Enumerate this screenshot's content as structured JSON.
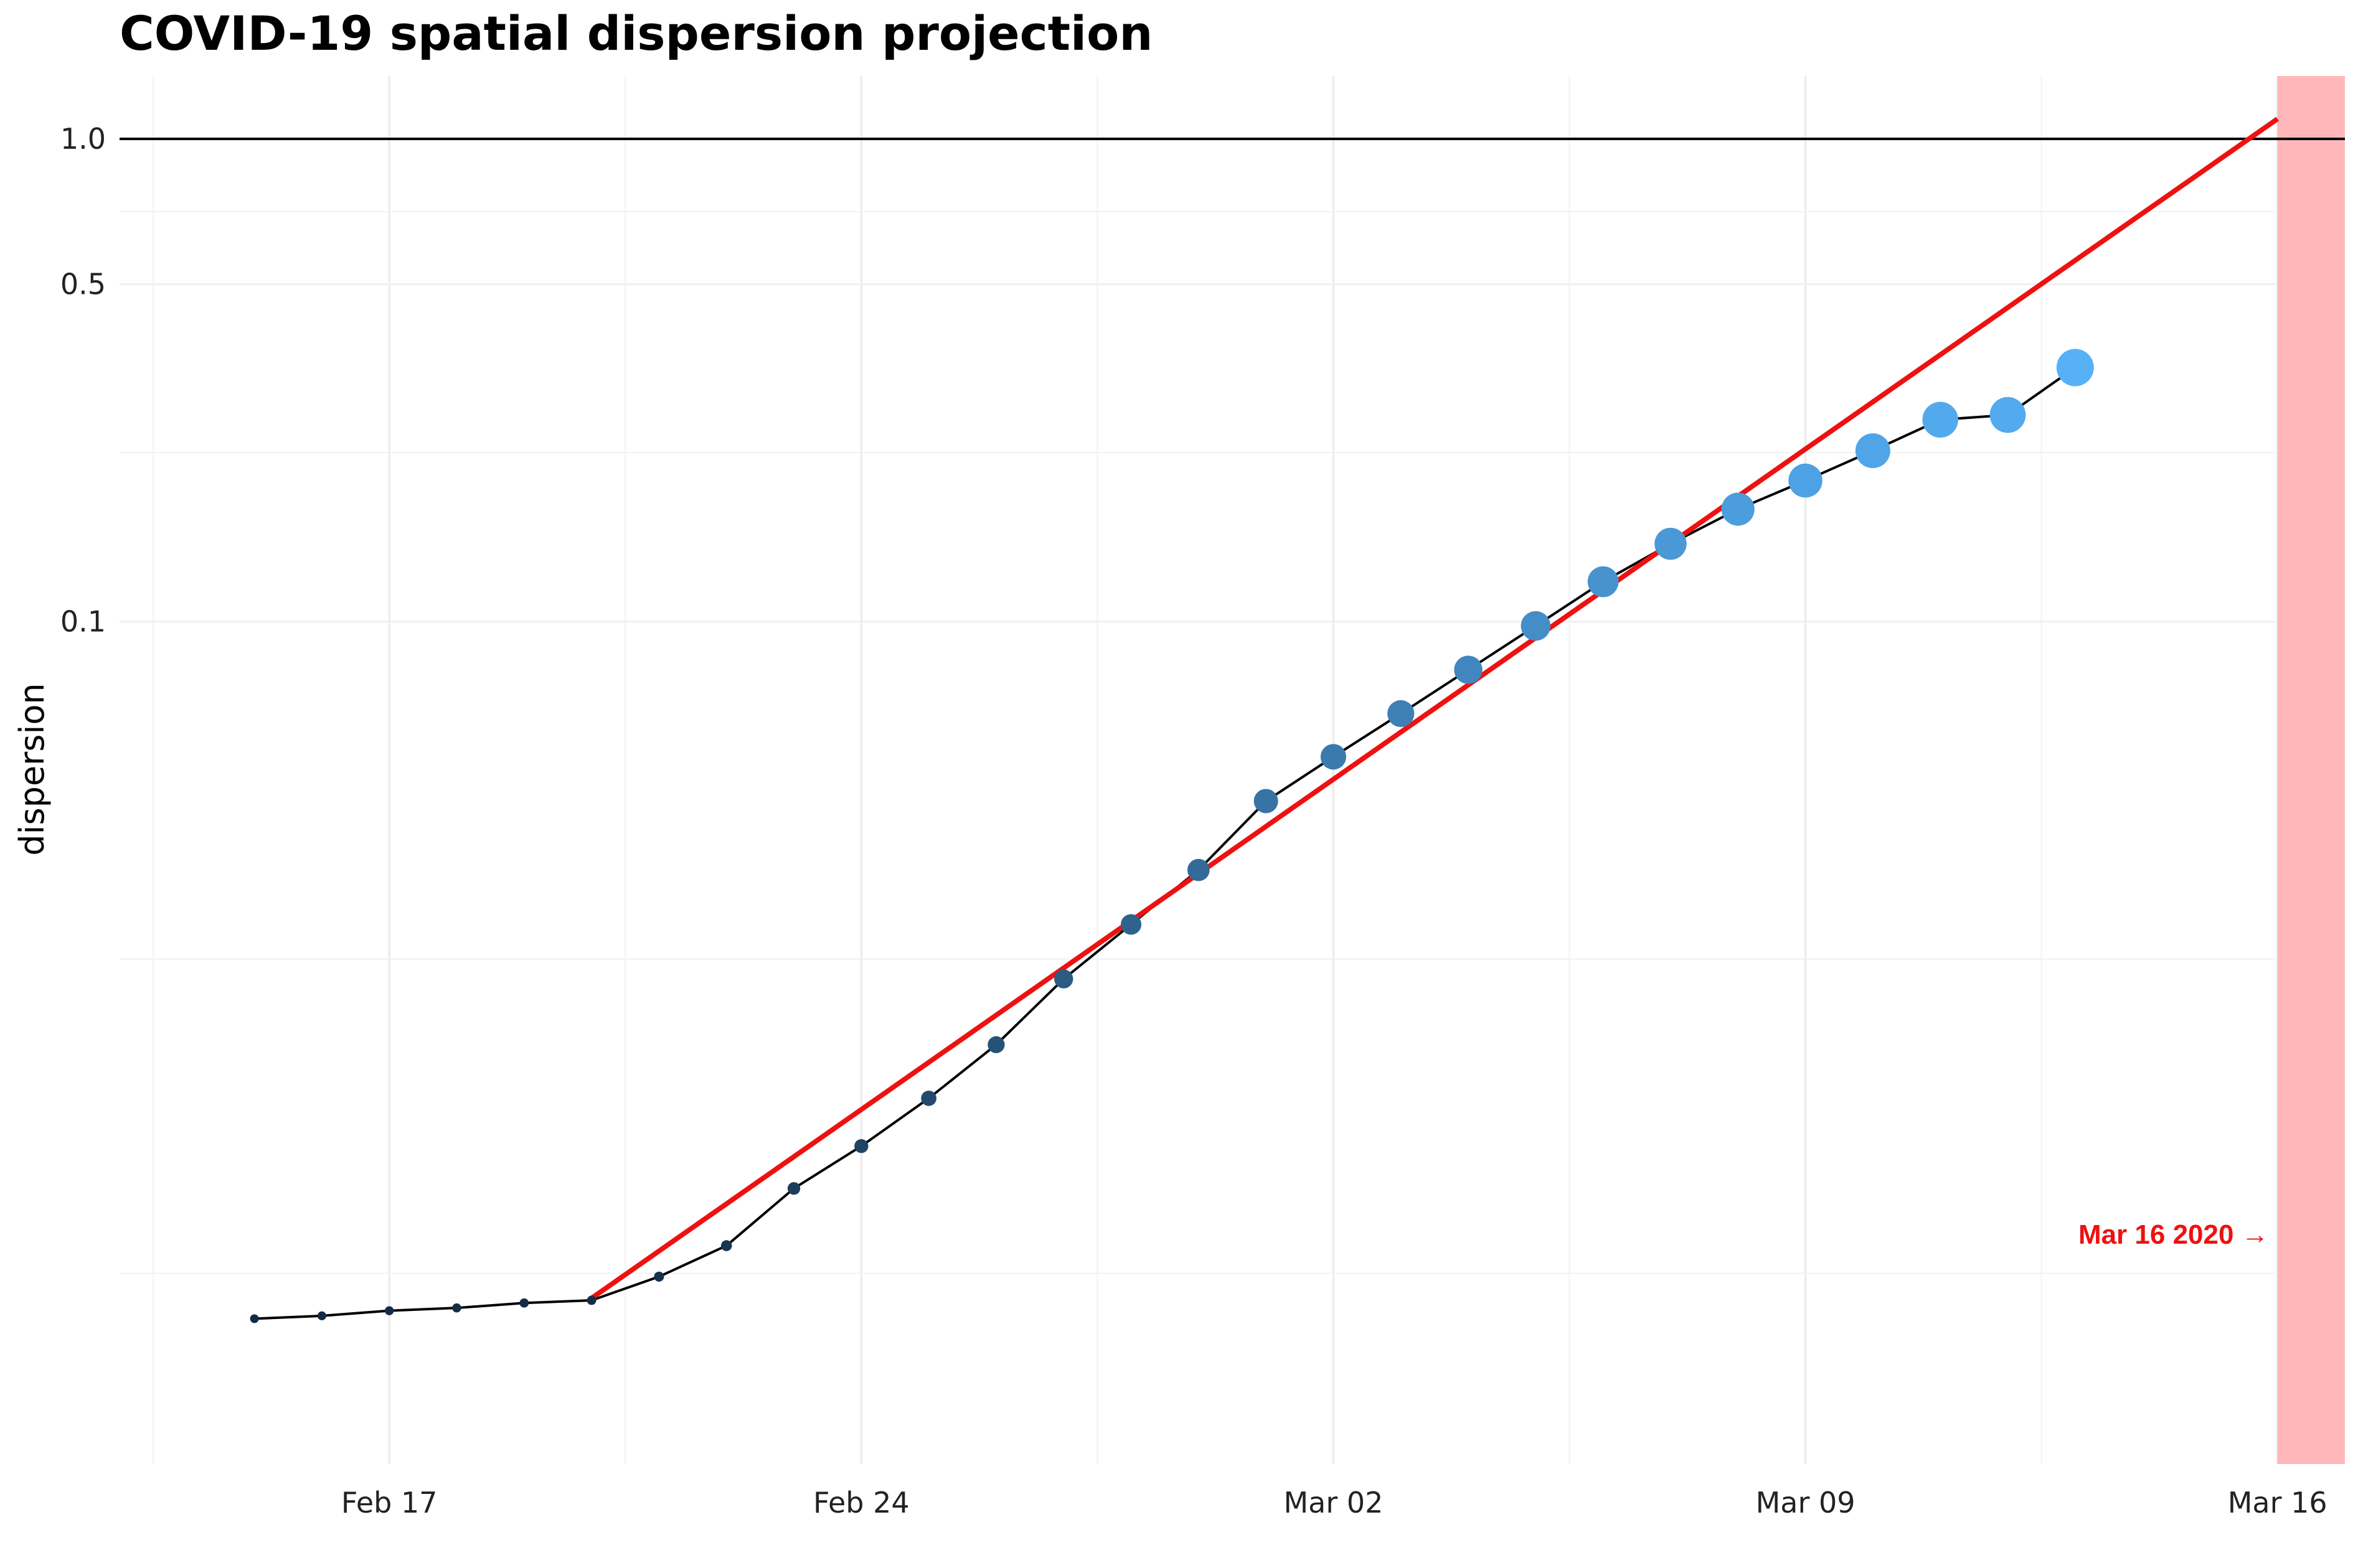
{
  "chart_data": {
    "type": "line",
    "title": "COVID-19 spatial dispersion projection",
    "xlabel": "",
    "ylabel": "dispersion",
    "y_scale": "log",
    "xlim": [
      "2020-02-13",
      "2020-03-17"
    ],
    "ylim": [
      0.0018,
      1.35
    ],
    "x_ticks": [
      "2020-02-17",
      "2020-02-24",
      "2020-03-02",
      "2020-03-09",
      "2020-03-16"
    ],
    "x_tick_labels": [
      "Feb 17",
      "Feb 24",
      "Mar 02",
      "Mar 09",
      "Mar 16"
    ],
    "y_ticks": [
      0.1,
      0.5,
      1.0
    ],
    "y_tick_labels": [
      "0.1",
      "0.5",
      "1.0"
    ],
    "grid": true,
    "reference_line": {
      "y": 1.0,
      "color": "#000000"
    },
    "series": [
      {
        "type": "line+points",
        "line_color": "#000000",
        "point_color_low": "#132B43",
        "point_color_high": "#56B1F7",
        "x": [
          "2020-02-15",
          "2020-02-16",
          "2020-02-17",
          "2020-02-18",
          "2020-02-19",
          "2020-02-20",
          "2020-02-21",
          "2020-02-22",
          "2020-02-23",
          "2020-02-24",
          "2020-02-25",
          "2020-02-26",
          "2020-02-27",
          "2020-02-28",
          "2020-02-29",
          "2020-03-01",
          "2020-03-02",
          "2020-03-03",
          "2020-03-04",
          "2020-03-05",
          "2020-03-06",
          "2020-03-07",
          "2020-03-08",
          "2020-03-09",
          "2020-03-10",
          "2020-03-11",
          "2020-03-12",
          "2020-03-13"
        ],
        "values": [
          0.0036,
          0.00365,
          0.00374,
          0.00379,
          0.00388,
          0.00393,
          0.0044,
          0.0051,
          0.0067,
          0.0082,
          0.0103,
          0.0133,
          0.0182,
          0.0236,
          0.0306,
          0.0425,
          0.0525,
          0.0645,
          0.0795,
          0.098,
          0.121,
          0.145,
          0.171,
          0.196,
          0.226,
          0.262,
          0.268,
          0.336
        ]
      },
      {
        "type": "trend",
        "color": "#EE1111",
        "x": [
          "2020-02-20",
          "2020-03-16"
        ],
        "values": [
          0.00397,
          1.1
        ]
      }
    ],
    "highlight_band": {
      "start": "2020-03-16",
      "end": "2020-03-17",
      "color": "#FFB3B6"
    },
    "annotation": {
      "text": "Mar 16 2020 →",
      "x": "2020-03-16",
      "y": 0.0054,
      "color": "#EE1111"
    }
  }
}
